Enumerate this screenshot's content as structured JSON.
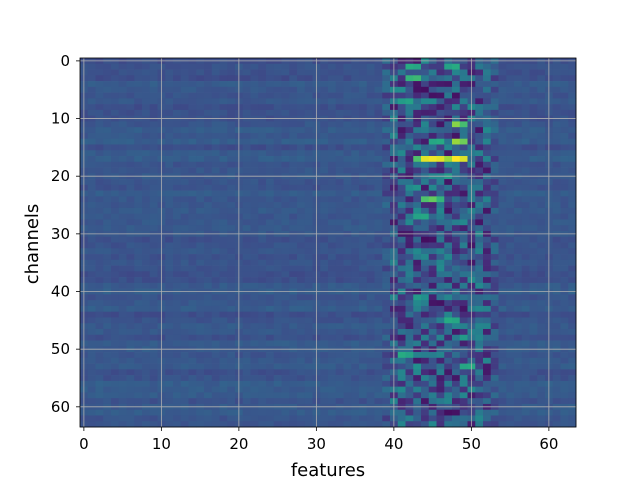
{
  "chart_data": {
    "type": "heatmap",
    "title": "",
    "xlabel": "features",
    "ylabel": "channels",
    "n_cols": 64,
    "n_rows": 64,
    "xlim": [
      -0.5,
      63.5
    ],
    "ylim": [
      63.5,
      -0.5
    ],
    "y_inverted": true,
    "x_ticks": [
      0,
      10,
      20,
      30,
      40,
      50,
      60
    ],
    "y_ticks": [
      0,
      10,
      20,
      30,
      40,
      50,
      60
    ],
    "grid": true,
    "colormap": "viridis",
    "value_range": [
      0,
      1
    ],
    "baseline_value": 0.27,
    "active_band_cols": [
      39,
      53
    ],
    "bright_cells": [
      {
        "col": 42,
        "row": 1,
        "v": 0.62
      },
      {
        "col": 43,
        "row": 1,
        "v": 0.6
      },
      {
        "col": 47,
        "row": 1,
        "v": 0.58
      },
      {
        "col": 48,
        "row": 1,
        "v": 0.62
      },
      {
        "col": 42,
        "row": 3,
        "v": 0.66
      },
      {
        "col": 43,
        "row": 3,
        "v": 0.68
      },
      {
        "col": 41,
        "row": 7,
        "v": 0.55
      },
      {
        "col": 42,
        "row": 7,
        "v": 0.58
      },
      {
        "col": 48,
        "row": 11,
        "v": 0.82
      },
      {
        "col": 49,
        "row": 11,
        "v": 0.7
      },
      {
        "col": 45,
        "row": 14,
        "v": 0.6
      },
      {
        "col": 46,
        "row": 14,
        "v": 0.62
      },
      {
        "col": 48,
        "row": 14,
        "v": 0.85
      },
      {
        "col": 49,
        "row": 14,
        "v": 0.78
      },
      {
        "col": 43,
        "row": 17,
        "v": 0.72
      },
      {
        "col": 44,
        "row": 17,
        "v": 0.96
      },
      {
        "col": 45,
        "row": 17,
        "v": 0.98
      },
      {
        "col": 46,
        "row": 17,
        "v": 0.96
      },
      {
        "col": 47,
        "row": 17,
        "v": 0.86
      },
      {
        "col": 48,
        "row": 17,
        "v": 1.0
      },
      {
        "col": 49,
        "row": 17,
        "v": 0.95
      },
      {
        "col": 47,
        "row": 20,
        "v": 0.55
      },
      {
        "col": 43,
        "row": 22,
        "v": 0.52
      },
      {
        "col": 44,
        "row": 24,
        "v": 0.72
      },
      {
        "col": 45,
        "row": 24,
        "v": 0.76
      },
      {
        "col": 46,
        "row": 24,
        "v": 0.66
      },
      {
        "col": 43,
        "row": 27,
        "v": 0.58
      },
      {
        "col": 44,
        "row": 27,
        "v": 0.6
      },
      {
        "col": 43,
        "row": 41,
        "v": 0.55
      },
      {
        "col": 44,
        "row": 41,
        "v": 0.5
      },
      {
        "col": 47,
        "row": 45,
        "v": 0.62
      },
      {
        "col": 48,
        "row": 45,
        "v": 0.6
      },
      {
        "col": 49,
        "row": 48,
        "v": 0.55
      },
      {
        "col": 41,
        "row": 51,
        "v": 0.62
      },
      {
        "col": 42,
        "row": 51,
        "v": 0.58
      },
      {
        "col": 49,
        "row": 53,
        "v": 0.6
      },
      {
        "col": 50,
        "row": 53,
        "v": 0.62
      },
      {
        "col": 43,
        "row": 53,
        "v": 0.5
      }
    ],
    "dark_cells": [
      {
        "col": 43,
        "row": 5,
        "v": 0.05
      },
      {
        "col": 44,
        "row": 5,
        "v": 0.04
      },
      {
        "col": 45,
        "row": 6,
        "v": 0.05
      },
      {
        "col": 46,
        "row": 6,
        "v": 0.06
      },
      {
        "col": 48,
        "row": 6,
        "v": 0.05
      },
      {
        "col": 44,
        "row": 31,
        "v": 0.04
      },
      {
        "col": 45,
        "row": 31,
        "v": 0.05
      },
      {
        "col": 45,
        "row": 42,
        "v": 0.06
      },
      {
        "col": 46,
        "row": 42,
        "v": 0.05
      },
      {
        "col": 47,
        "row": 61,
        "v": 0.04
      },
      {
        "col": 48,
        "row": 61,
        "v": 0.05
      },
      {
        "col": 48,
        "row": 13,
        "v": 0.06
      },
      {
        "col": 44,
        "row": 59,
        "v": 0.07
      }
    ]
  }
}
